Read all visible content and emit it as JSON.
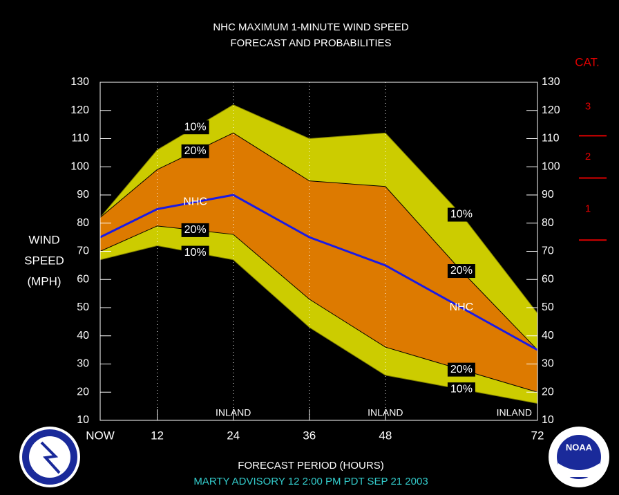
{
  "chart_data": {
    "type": "band-line",
    "title": "NHC MAXIMUM 1-MINUTE WIND SPEED",
    "subtitle": "FORECAST AND PROBABILITIES",
    "xlabel": "FORECAST PERIOD (HOURS)",
    "ylabel_lines": [
      "WIND",
      "SPEED",
      "(MPH)"
    ],
    "footer": "MARTY   ADVISORY  12  2:00  PM  PDT  SEP  21  2003",
    "x": [
      3,
      12,
      24,
      36,
      48,
      60,
      72
    ],
    "xlim": [
      3,
      72
    ],
    "xticks": [
      {
        "value": 3,
        "label": "NOW"
      },
      12,
      24,
      36,
      48,
      72
    ],
    "ylim": [
      10,
      130
    ],
    "yticks": [
      10,
      20,
      30,
      40,
      50,
      60,
      70,
      80,
      90,
      100,
      110,
      120,
      130
    ],
    "series": [
      {
        "name": "10%",
        "color": "#808000",
        "values": [
          82,
          106,
          122,
          110,
          112,
          83,
          48
        ]
      },
      {
        "name": "20%",
        "color": "#000000",
        "values": [
          82,
          99,
          112,
          95,
          93,
          63,
          35
        ]
      },
      {
        "name": "NHC",
        "color": "#1a1ae6",
        "values": [
          75,
          85,
          90,
          75,
          65,
          50,
          35
        ]
      },
      {
        "name": "20%",
        "color": "#000000",
        "values": [
          70,
          79,
          76,
          53,
          36,
          28,
          20
        ]
      },
      {
        "name": "10%",
        "color": "#808000",
        "values": [
          67,
          72,
          67,
          43,
          26,
          21,
          16
        ]
      }
    ],
    "bands": [
      {
        "color": "#cccc00"
      },
      {
        "color": "#dd7a00"
      }
    ],
    "annotations": [
      {
        "text": "INLAND",
        "x": 24
      },
      {
        "text": "INLAND",
        "x": 48
      },
      {
        "text": "INLAND",
        "x": 72
      }
    ],
    "category_scale": {
      "title": "CAT.",
      "labels": [
        "1",
        "2",
        "3"
      ],
      "thresholds": [
        74,
        96,
        111
      ],
      "color": "#e00000"
    },
    "logo_text": "NOAA"
  }
}
